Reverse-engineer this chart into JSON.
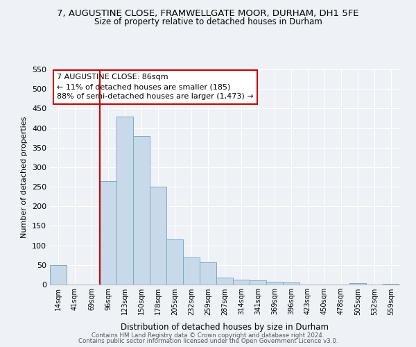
{
  "title": "7, AUGUSTINE CLOSE, FRAMWELLGATE MOOR, DURHAM, DH1 5FE",
  "subtitle": "Size of property relative to detached houses in Durham",
  "xlabel": "Distribution of detached houses by size in Durham",
  "ylabel": "Number of detached properties",
  "bar_color": "#c8daea",
  "bar_edge_color": "#7aaac8",
  "categories": [
    "14sqm",
    "41sqm",
    "69sqm",
    "96sqm",
    "123sqm",
    "150sqm",
    "178sqm",
    "205sqm",
    "232sqm",
    "259sqm",
    "287sqm",
    "314sqm",
    "341sqm",
    "369sqm",
    "396sqm",
    "423sqm",
    "450sqm",
    "478sqm",
    "505sqm",
    "532sqm",
    "559sqm"
  ],
  "values": [
    50,
    0,
    0,
    265,
    430,
    380,
    250,
    115,
    70,
    57,
    18,
    12,
    10,
    7,
    5,
    0,
    0,
    0,
    3,
    0,
    2
  ],
  "ylim": [
    0,
    550
  ],
  "yticks": [
    0,
    50,
    100,
    150,
    200,
    250,
    300,
    350,
    400,
    450,
    500,
    550
  ],
  "vline_color": "#cc0000",
  "annotation_title": "7 AUGUSTINE CLOSE: 86sqm",
  "annotation_line2": "← 11% of detached houses are smaller (185)",
  "annotation_line3": "88% of semi-detached houses are larger (1,473) →",
  "footer1": "Contains HM Land Registry data © Crown copyright and database right 2024.",
  "footer2": "Contains public sector information licensed under the Open Government Licence v3.0.",
  "background_color": "#eef2f7",
  "grid_color": "#ffffff",
  "title_fontsize": 9.5,
  "subtitle_fontsize": 8.5
}
